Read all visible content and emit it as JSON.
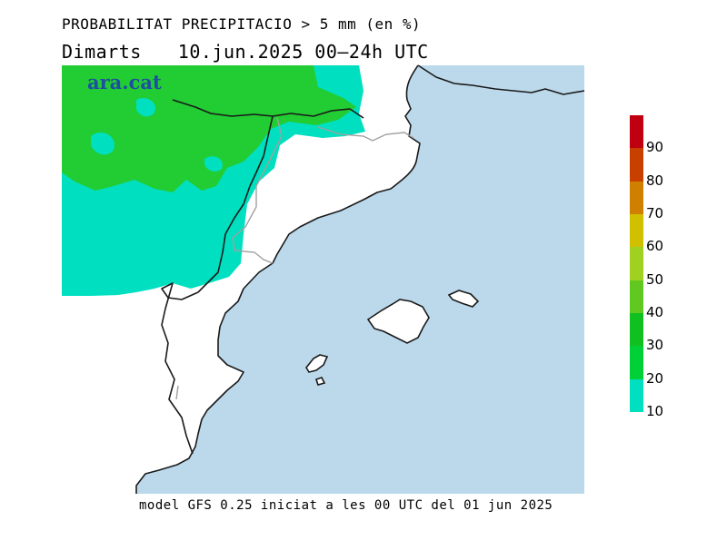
{
  "title": "PROBABILITAT PRECIPITACIO > 5 mm (en %)",
  "day": "Dimarts",
  "date_range": "10.jun.2025 00–24h UTC",
  "footer": "model GFS 0.25 iniciat a les 00 UTC del 01 jun 2025",
  "logo": "ara.cat",
  "legend": {
    "bins": [
      {
        "from": 10,
        "to": 20,
        "color": "#00e0c0"
      },
      {
        "from": 20,
        "to": 30,
        "color": "#00d038"
      },
      {
        "from": 30,
        "to": 40,
        "color": "#10c020"
      },
      {
        "from": 40,
        "to": 50,
        "color": "#60c820"
      },
      {
        "from": 50,
        "to": 60,
        "color": "#a0d020"
      },
      {
        "from": 60,
        "to": 70,
        "color": "#d0c000"
      },
      {
        "from": 70,
        "to": 80,
        "color": "#d08000"
      },
      {
        "from": 80,
        "to": 90,
        "color": "#c84000"
      },
      {
        "from": 90,
        "to": 100,
        "color": "#c00010"
      }
    ],
    "labels": [
      "10",
      "20",
      "30",
      "40",
      "50",
      "60",
      "70",
      "80",
      "90"
    ]
  },
  "colors": {
    "sea": "#bcd9ec",
    "land": "#ffffff",
    "coast": "#1a1a1a",
    "border": "#a0a0a0"
  }
}
